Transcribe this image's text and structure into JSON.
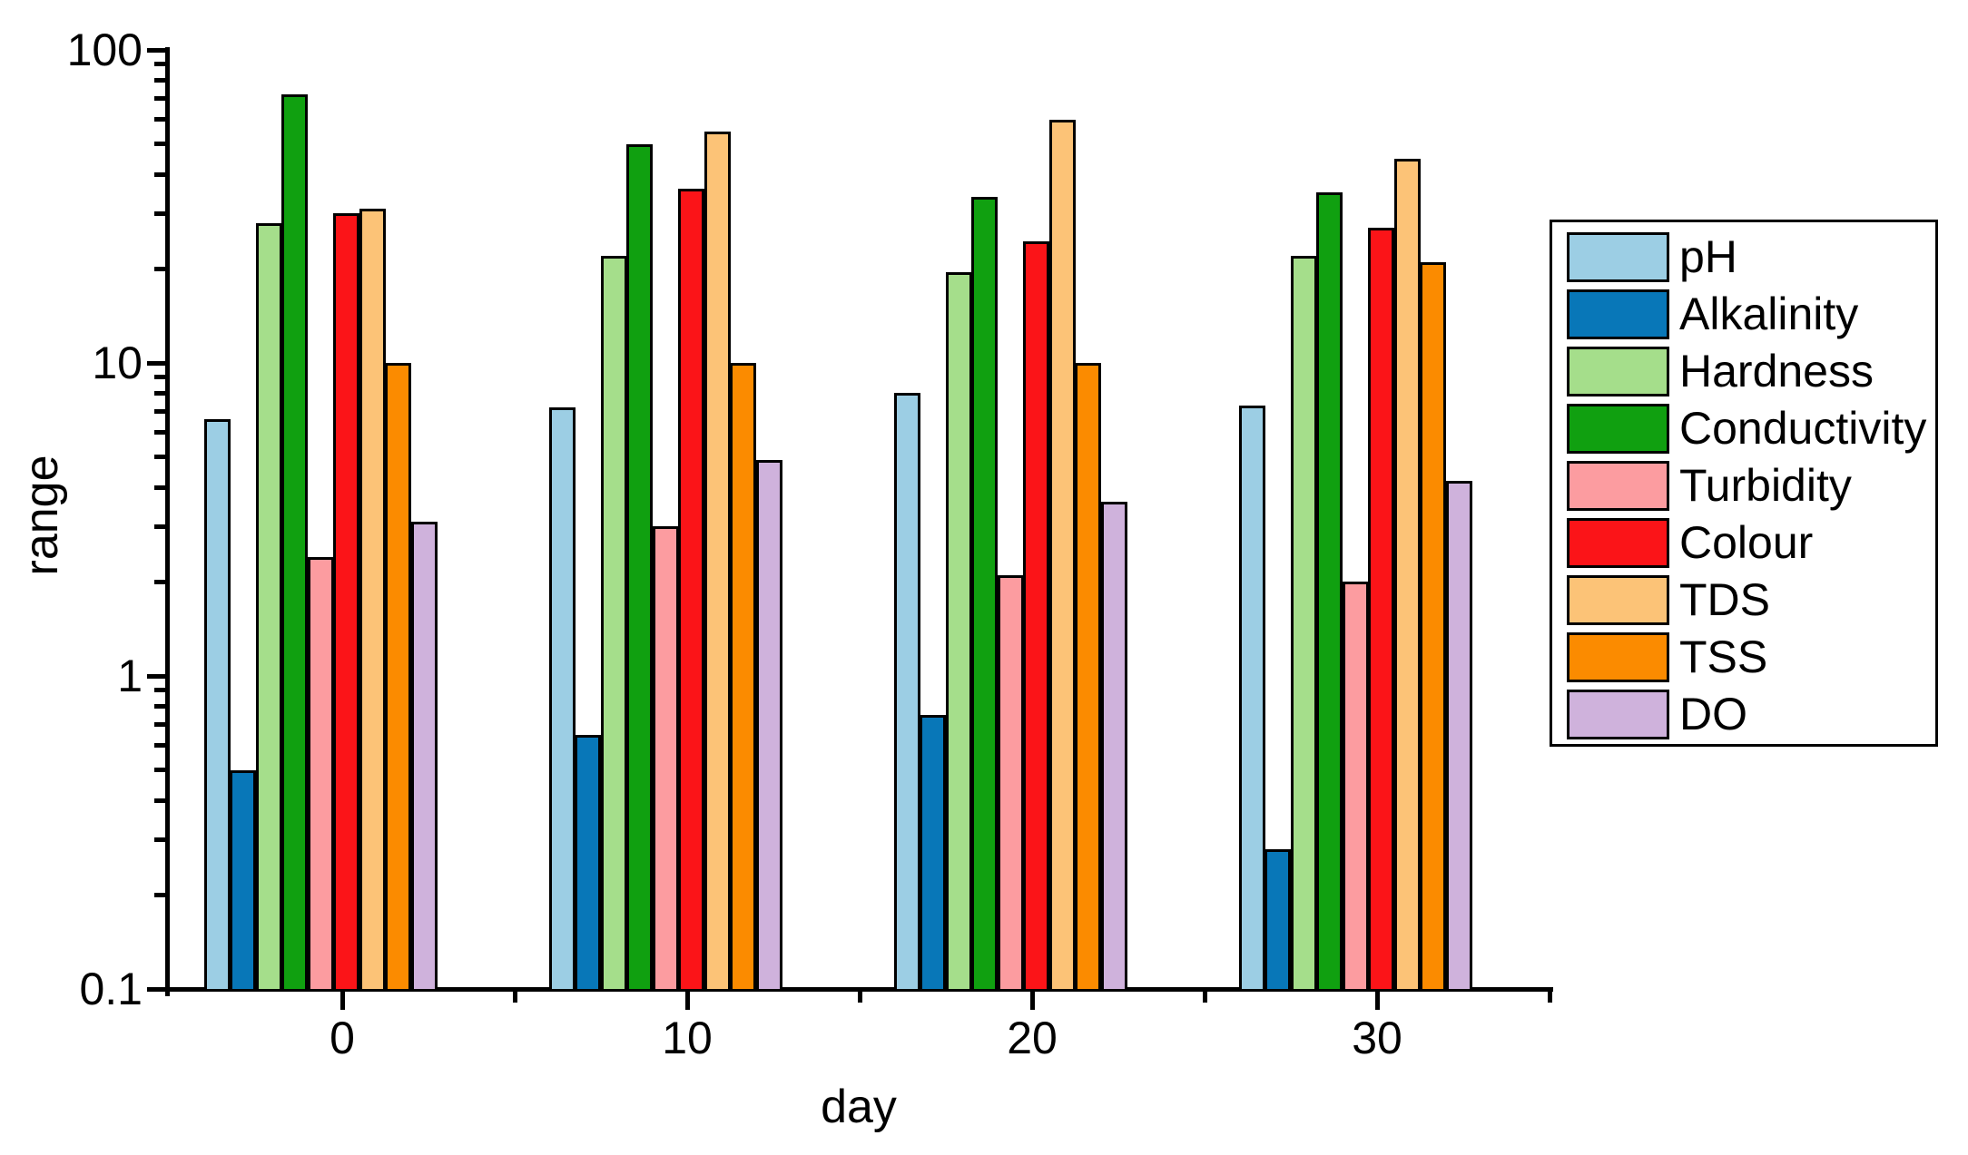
{
  "chart_data": {
    "type": "bar",
    "title": "",
    "xlabel": "day",
    "ylabel": "range",
    "categories": [
      0,
      10,
      20,
      30
    ],
    "x_tick_labels": [
      "0",
      "10",
      "20",
      "30"
    ],
    "x_minor_ticks": [
      5,
      15,
      25,
      35
    ],
    "y_scale": "log",
    "ylim": [
      0.1,
      100
    ],
    "y_major_ticks": [
      100,
      10,
      1,
      0.1
    ],
    "y_major_tick_labels": [
      "100",
      "10",
      "1",
      "0.1"
    ],
    "grid": false,
    "legend_position": "right",
    "axis_color": "#000000",
    "background_color": "#ffffff",
    "series": [
      {
        "name": "pH",
        "color": "#9CCEE4",
        "values": [
          6.6,
          7.2,
          8.0,
          7.3
        ]
      },
      {
        "name": "Alkalinity",
        "color": "#0877B8",
        "values": [
          0.5,
          0.65,
          0.75,
          0.28
        ]
      },
      {
        "name": "Hardness",
        "color": "#A5DE8B",
        "values": [
          28,
          22,
          19.5,
          22
        ]
      },
      {
        "name": "Conductivity",
        "color": "#10A010",
        "values": [
          72,
          50,
          34,
          35
        ]
      },
      {
        "name": "Turbidity",
        "color": "#FC9CA0",
        "values": [
          2.4,
          3.0,
          2.1,
          2.0
        ]
      },
      {
        "name": "Colour",
        "color": "#FB1418",
        "values": [
          30,
          36,
          24.5,
          27
        ]
      },
      {
        "name": "TDS",
        "color": "#FCC377",
        "values": [
          31,
          55,
          60,
          45
        ]
      },
      {
        "name": "TSS",
        "color": "#FB8B00",
        "values": [
          10,
          10,
          10,
          21
        ]
      },
      {
        "name": "DO",
        "color": "#CFB2DC",
        "values": [
          3.1,
          4.9,
          3.6,
          4.2
        ]
      }
    ]
  }
}
